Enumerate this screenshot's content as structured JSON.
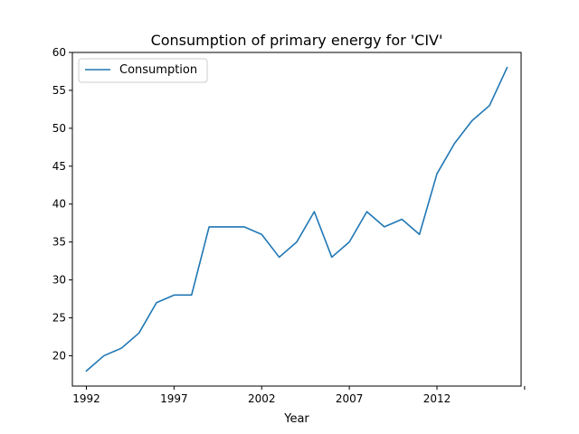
{
  "chart_data": {
    "type": "line",
    "title": "Consumption of primary energy for 'CIV'",
    "xlabel": "Year",
    "ylabel": "",
    "xlim": [
      1991.2,
      2016.8
    ],
    "ylim": [
      16,
      60
    ],
    "x_ticks": [
      1992,
      1997,
      2002,
      2007,
      2012,
      2017
    ],
    "x_tick_labels": [
      "1992",
      "1997",
      "2002",
      "2007",
      "2012",
      ""
    ],
    "y_ticks": [
      20,
      25,
      30,
      35,
      40,
      45,
      50,
      55,
      60
    ],
    "grid": false,
    "legend": "upper-left",
    "colors": {
      "series": "#1f77b4"
    },
    "x": [
      1992,
      1993,
      1994,
      1995,
      1996,
      1997,
      1998,
      1999,
      2000,
      2001,
      2002,
      2003,
      2004,
      2005,
      2006,
      2007,
      2008,
      2009,
      2010,
      2011,
      2012,
      2013,
      2014,
      2015,
      2016
    ],
    "series": [
      {
        "name": "Consumption",
        "values": [
          18,
          20,
          21,
          23,
          27,
          28,
          28,
          37,
          37,
          37,
          36,
          33,
          35,
          39,
          33,
          35,
          39,
          37,
          38,
          36,
          44,
          48,
          51,
          53,
          58
        ]
      }
    ]
  }
}
